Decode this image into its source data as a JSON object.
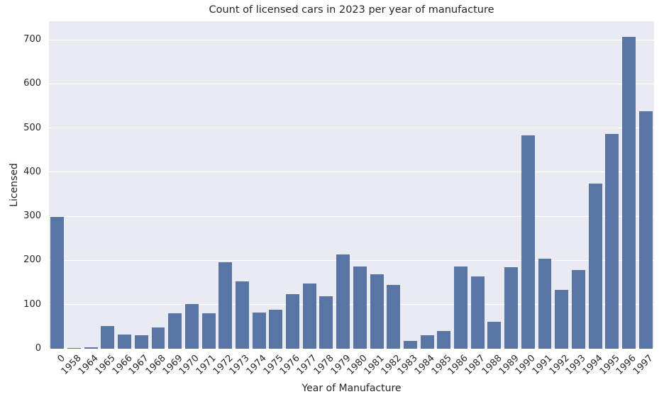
{
  "chart_data": {
    "type": "bar",
    "title": "Count of licensed cars in 2023 per year of manufacture",
    "xlabel": "Year of Manufacture",
    "ylabel": "Licensed",
    "categories": [
      "0",
      "1958",
      "1964",
      "1965",
      "1966",
      "1967",
      "1968",
      "1969",
      "1970",
      "1971",
      "1972",
      "1973",
      "1974",
      "1975",
      "1976",
      "1977",
      "1978",
      "1979",
      "1980",
      "1981",
      "1982",
      "1983",
      "1984",
      "1985",
      "1986",
      "1987",
      "1988",
      "1989",
      "1990",
      "1991",
      "1992",
      "1993",
      "1994",
      "1995",
      "1996",
      "1997"
    ],
    "values": [
      298,
      1,
      3,
      52,
      32,
      31,
      48,
      81,
      102,
      80,
      196,
      153,
      82,
      89,
      124,
      148,
      119,
      214,
      187,
      169,
      145,
      18,
      31,
      40,
      187,
      164,
      61,
      185,
      484,
      204,
      134,
      178,
      374,
      486,
      706,
      538
    ],
    "ylim": [
      0,
      742
    ],
    "yticks": [
      0,
      100,
      200,
      300,
      400,
      500,
      600,
      700
    ],
    "grid": "horizontal",
    "legend": "none",
    "colors": {
      "bar": "#5875a4",
      "plot_background": "#eaeaf2",
      "gridline": "#ffffff",
      "text": "#262626",
      "figure_background": "#ffffff"
    }
  }
}
